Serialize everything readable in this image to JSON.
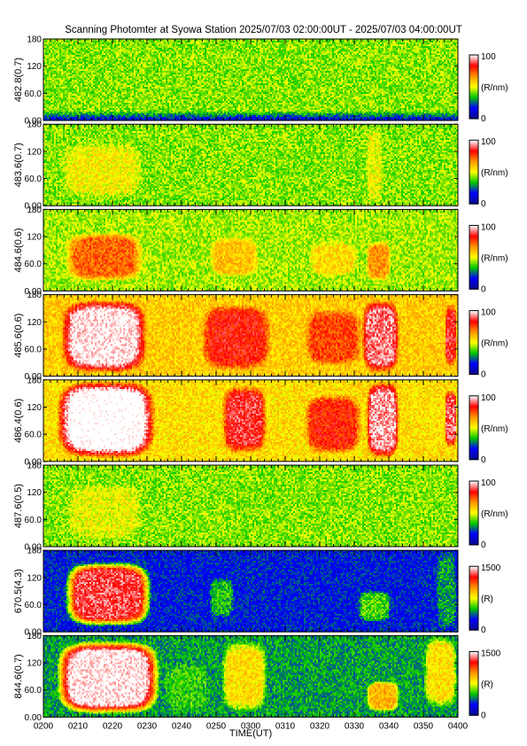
{
  "title": "Scanning Photomter at Syowa Station 2025/07/03 02:00:00UT - 2025/07/03 04:00:00UT",
  "colors": {
    "colormap": [
      "#0a0a8c",
      "#0000ff",
      "#00c800",
      "#ffff00",
      "#ff9600",
      "#ff0000",
      "#ffffff"
    ],
    "background": "#ffffff"
  },
  "chart_data": {
    "type": "heatmap",
    "title": "Scanning Photomter at Syowa Station 2025/07/03 02:00:00UT - 2025/07/03 04:00:00UT",
    "xlabel": "TIME(UT)",
    "x_ticks": [
      "0200",
      "0210",
      "0220",
      "0230",
      "0240",
      "0250",
      "0300",
      "0310",
      "0320",
      "0330",
      "0340",
      "0350",
      "0400"
    ],
    "y_ticks": [
      "0.00",
      "60.0",
      "120",
      "180"
    ],
    "ylim": [
      0,
      180
    ],
    "panels": [
      {
        "ylabel": "482.8(0.7)",
        "colorbar_max": "100",
        "colorbar_min": "0",
        "colorbar_unit": "(R/nm)",
        "baseline": 0.42,
        "events": []
      },
      {
        "ylabel": "483.6(0.7)",
        "colorbar_max": "100",
        "colorbar_min": "0",
        "colorbar_unit": "(R/nm)",
        "baseline": 0.42,
        "events": [
          {
            "t0": 0.04,
            "t1": 0.24,
            "y0": 15,
            "y1": 140,
            "level": 0.52
          },
          {
            "t0": 0.78,
            "t1": 0.82,
            "y0": 0,
            "y1": 180,
            "level": 0.5
          }
        ]
      },
      {
        "ylabel": "484.6(0.6)",
        "colorbar_max": "100",
        "colorbar_min": "0",
        "colorbar_unit": "(R/nm)",
        "baseline": 0.44,
        "events": [
          {
            "t0": 0.05,
            "t1": 0.24,
            "y0": 20,
            "y1": 130,
            "level": 0.72
          },
          {
            "t0": 0.4,
            "t1": 0.52,
            "y0": 30,
            "y1": 120,
            "level": 0.6
          },
          {
            "t0": 0.64,
            "t1": 0.76,
            "y0": 30,
            "y1": 110,
            "level": 0.55
          },
          {
            "t0": 0.78,
            "t1": 0.84,
            "y0": 20,
            "y1": 110,
            "level": 0.66
          }
        ]
      },
      {
        "ylabel": "485.6(0.6)",
        "colorbar_max": "100",
        "colorbar_min": "0",
        "colorbar_unit": "(R/nm)",
        "baseline": 0.58,
        "events": [
          {
            "t0": 0.04,
            "t1": 0.25,
            "y0": 5,
            "y1": 170,
            "level": 1.0
          },
          {
            "t0": 0.38,
            "t1": 0.55,
            "y0": 10,
            "y1": 160,
            "level": 0.82
          },
          {
            "t0": 0.63,
            "t1": 0.77,
            "y0": 20,
            "y1": 150,
            "level": 0.76
          },
          {
            "t0": 0.77,
            "t1": 0.86,
            "y0": 5,
            "y1": 170,
            "level": 0.92
          },
          {
            "t0": 0.97,
            "t1": 1.0,
            "y0": 20,
            "y1": 160,
            "level": 0.85
          }
        ]
      },
      {
        "ylabel": "486.4(0.6)",
        "colorbar_max": "100",
        "colorbar_min": "0",
        "colorbar_unit": "(R/nm)",
        "baseline": 0.55,
        "events": [
          {
            "t0": 0.03,
            "t1": 0.27,
            "y0": 5,
            "y1": 180,
            "level": 1.05
          },
          {
            "t0": 0.43,
            "t1": 0.54,
            "y0": 15,
            "y1": 170,
            "level": 0.86
          },
          {
            "t0": 0.63,
            "t1": 0.77,
            "y0": 15,
            "y1": 150,
            "level": 0.8
          },
          {
            "t0": 0.78,
            "t1": 0.86,
            "y0": 5,
            "y1": 180,
            "level": 0.95
          },
          {
            "t0": 0.97,
            "t1": 1.0,
            "y0": 30,
            "y1": 160,
            "level": 0.9
          }
        ]
      },
      {
        "ylabel": "487.6(0.5)",
        "colorbar_max": "100",
        "colorbar_min": "0",
        "colorbar_unit": "(R/nm)",
        "baseline": 0.42,
        "events": [
          {
            "t0": 0.05,
            "t1": 0.24,
            "y0": 10,
            "y1": 140,
            "level": 0.5
          }
        ]
      },
      {
        "ylabel": "670.5(4.3)",
        "colorbar_max": "1500",
        "colorbar_min": "0",
        "colorbar_unit": "(R)",
        "baseline": 0.18,
        "events": [
          {
            "t0": 0.05,
            "t1": 0.26,
            "y0": 10,
            "y1": 155,
            "level": 0.88
          },
          {
            "t0": 0.4,
            "t1": 0.46,
            "y0": 30,
            "y1": 120,
            "level": 0.34
          },
          {
            "t0": 0.76,
            "t1": 0.84,
            "y0": 20,
            "y1": 90,
            "level": 0.38
          },
          {
            "t0": 0.95,
            "t1": 1.0,
            "y0": 0,
            "y1": 180,
            "level": 0.3
          }
        ]
      },
      {
        "ylabel": "844.6(0.7)",
        "colorbar_max": "1500",
        "colorbar_min": "0",
        "colorbar_unit": "(R)",
        "baseline": 0.3,
        "events": [
          {
            "t0": 0.03,
            "t1": 0.28,
            "y0": 5,
            "y1": 170,
            "level": 1.0
          },
          {
            "t0": 0.43,
            "t1": 0.54,
            "y0": 10,
            "y1": 170,
            "level": 0.55
          },
          {
            "t0": 0.29,
            "t1": 0.4,
            "y0": 10,
            "y1": 120,
            "level": 0.36
          },
          {
            "t0": 0.78,
            "t1": 0.86,
            "y0": 10,
            "y1": 80,
            "level": 0.62
          },
          {
            "t0": 0.92,
            "t1": 1.0,
            "y0": 20,
            "y1": 180,
            "level": 0.55
          }
        ]
      }
    ]
  }
}
